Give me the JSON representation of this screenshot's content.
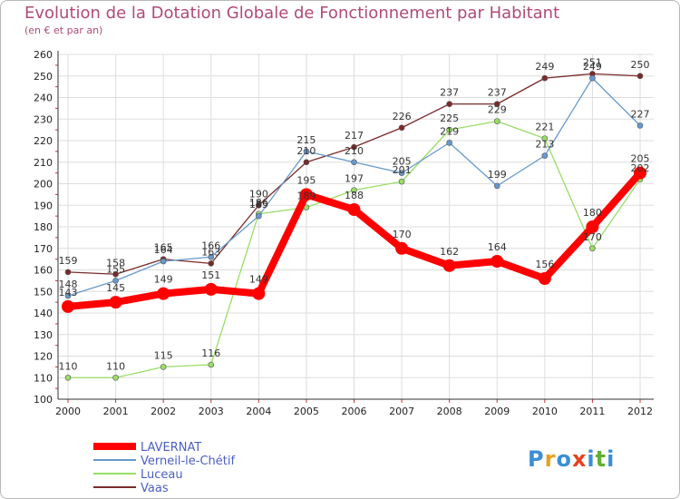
{
  "chart_data": {
    "type": "line",
    "title": "Evolution de la Dotation Globale de Fonctionnement par Habitant",
    "subtitle": "(en € et par an)",
    "xlabel": "",
    "ylabel": "",
    "ylim": [
      100,
      260
    ],
    "yticks": [
      100,
      110,
      120,
      130,
      140,
      150,
      160,
      170,
      180,
      190,
      200,
      210,
      220,
      230,
      240,
      250,
      260
    ],
    "x": [
      "2000",
      "2001",
      "2002",
      "2003",
      "2004",
      "2005",
      "2006",
      "2007",
      "2008",
      "2009",
      "2010",
      "2011",
      "2012"
    ],
    "grid": true,
    "legend_position": "bottom-left",
    "series": [
      {
        "name": "LAVERNAT",
        "color": "#ff0000",
        "values": [
          143,
          145,
          149,
          151,
          149,
          195,
          188,
          170,
          162,
          164,
          156,
          180,
          205
        ]
      },
      {
        "name": "Verneil-le-Chétif",
        "color": "#6699cc",
        "values": [
          148,
          155,
          164,
          166,
          185,
          215,
          210,
          205,
          219,
          199,
          213,
          249,
          227
        ]
      },
      {
        "name": "Luceau",
        "color": "#99dd66",
        "values": [
          110,
          110,
          115,
          116,
          186,
          189,
          197,
          201,
          225,
          229,
          221,
          170,
          202
        ]
      },
      {
        "name": "Vaas",
        "color": "#7a2a2a",
        "values": [
          159,
          158,
          165,
          163,
          190,
          210,
          217,
          226,
          237,
          237,
          249,
          251,
          250
        ]
      }
    ]
  },
  "logo": {
    "letters": [
      "P",
      "r",
      "o",
      "x",
      "i",
      "t",
      "i"
    ],
    "colors": [
      "#3a8fd6",
      "#e8a020",
      "#3a8fd6",
      "#e84020",
      "#3a8fd6",
      "#60b030",
      "#3a8fd6"
    ]
  }
}
